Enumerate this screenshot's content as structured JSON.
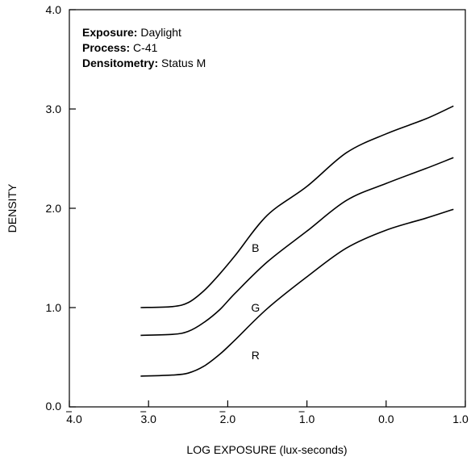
{
  "chart_data": {
    "type": "line",
    "xlabel": "LOG EXPOSURE (lux-seconds)",
    "ylabel": "DENSITY",
    "xlim": [
      -4.0,
      1.0
    ],
    "ylim": [
      0.0,
      4.0
    ],
    "x_ticks": [
      {
        "value": -4.0,
        "label": "4.0",
        "bar": true
      },
      {
        "value": -3.0,
        "label": "3.0",
        "bar": true
      },
      {
        "value": -2.0,
        "label": "2.0",
        "bar": true
      },
      {
        "value": -1.0,
        "label": "1.0",
        "bar": true
      },
      {
        "value": 0.0,
        "label": "0.0",
        "bar": false
      },
      {
        "value": 1.0,
        "label": "1.0",
        "bar": false
      }
    ],
    "y_ticks": [
      {
        "value": 0.0,
        "label": "0.0"
      },
      {
        "value": 1.0,
        "label": "1.0"
      },
      {
        "value": 2.0,
        "label": "2.0"
      },
      {
        "value": 3.0,
        "label": "3.0"
      },
      {
        "value": 4.0,
        "label": "4.0"
      }
    ],
    "info": [
      {
        "key": "Exposure:",
        "value": "Daylight"
      },
      {
        "key": "Process:",
        "value": "C-41"
      },
      {
        "key": "Densitometry:",
        "value": "Status M"
      }
    ],
    "series": [
      {
        "name": "B",
        "label_at": [
          -1.65,
          1.6
        ],
        "points": [
          [
            -3.1,
            1.0
          ],
          [
            -2.7,
            1.01
          ],
          [
            -2.5,
            1.05
          ],
          [
            -2.3,
            1.17
          ],
          [
            -2.1,
            1.34
          ],
          [
            -1.9,
            1.53
          ],
          [
            -1.5,
            1.93
          ],
          [
            -1.0,
            2.22
          ],
          [
            -0.5,
            2.56
          ],
          [
            0.0,
            2.75
          ],
          [
            0.5,
            2.9
          ],
          [
            0.85,
            3.03
          ]
        ]
      },
      {
        "name": "G",
        "label_at": [
          -1.65,
          1.0
        ],
        "points": [
          [
            -3.1,
            0.72
          ],
          [
            -2.7,
            0.73
          ],
          [
            -2.5,
            0.76
          ],
          [
            -2.3,
            0.85
          ],
          [
            -2.1,
            0.98
          ],
          [
            -1.9,
            1.15
          ],
          [
            -1.5,
            1.46
          ],
          [
            -1.0,
            1.77
          ],
          [
            -0.5,
            2.08
          ],
          [
            0.0,
            2.25
          ],
          [
            0.5,
            2.4
          ],
          [
            0.85,
            2.51
          ]
        ]
      },
      {
        "name": "R",
        "label_at": [
          -1.65,
          0.52
        ],
        "points": [
          [
            -3.1,
            0.31
          ],
          [
            -2.7,
            0.32
          ],
          [
            -2.5,
            0.34
          ],
          [
            -2.3,
            0.41
          ],
          [
            -2.1,
            0.53
          ],
          [
            -1.9,
            0.68
          ],
          [
            -1.5,
            0.99
          ],
          [
            -1.0,
            1.31
          ],
          [
            -0.5,
            1.6
          ],
          [
            0.0,
            1.78
          ],
          [
            0.5,
            1.9
          ],
          [
            0.85,
            1.99
          ]
        ]
      }
    ]
  }
}
